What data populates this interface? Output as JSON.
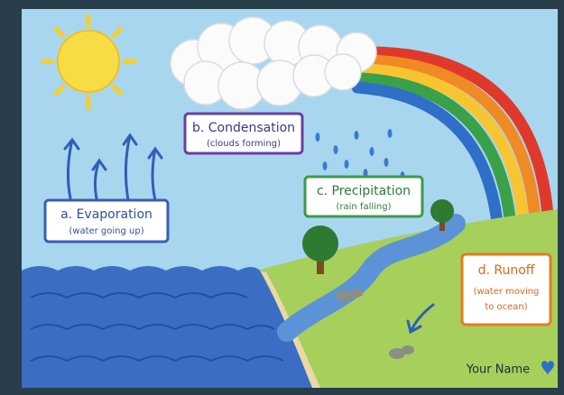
{
  "labels": [
    {
      "title": "a. Evaporation",
      "lines": [
        "(water going up)"
      ]
    },
    {
      "title": "b. Condensation",
      "lines": [
        "(clouds forming)"
      ]
    },
    {
      "title": "c. Precipitation",
      "lines": [
        "(rain falling)"
      ]
    },
    {
      "title": "d. Runoff",
      "lines": [
        "(water moving",
        "to ocean)"
      ]
    }
  ],
  "signature": "Your Name"
}
